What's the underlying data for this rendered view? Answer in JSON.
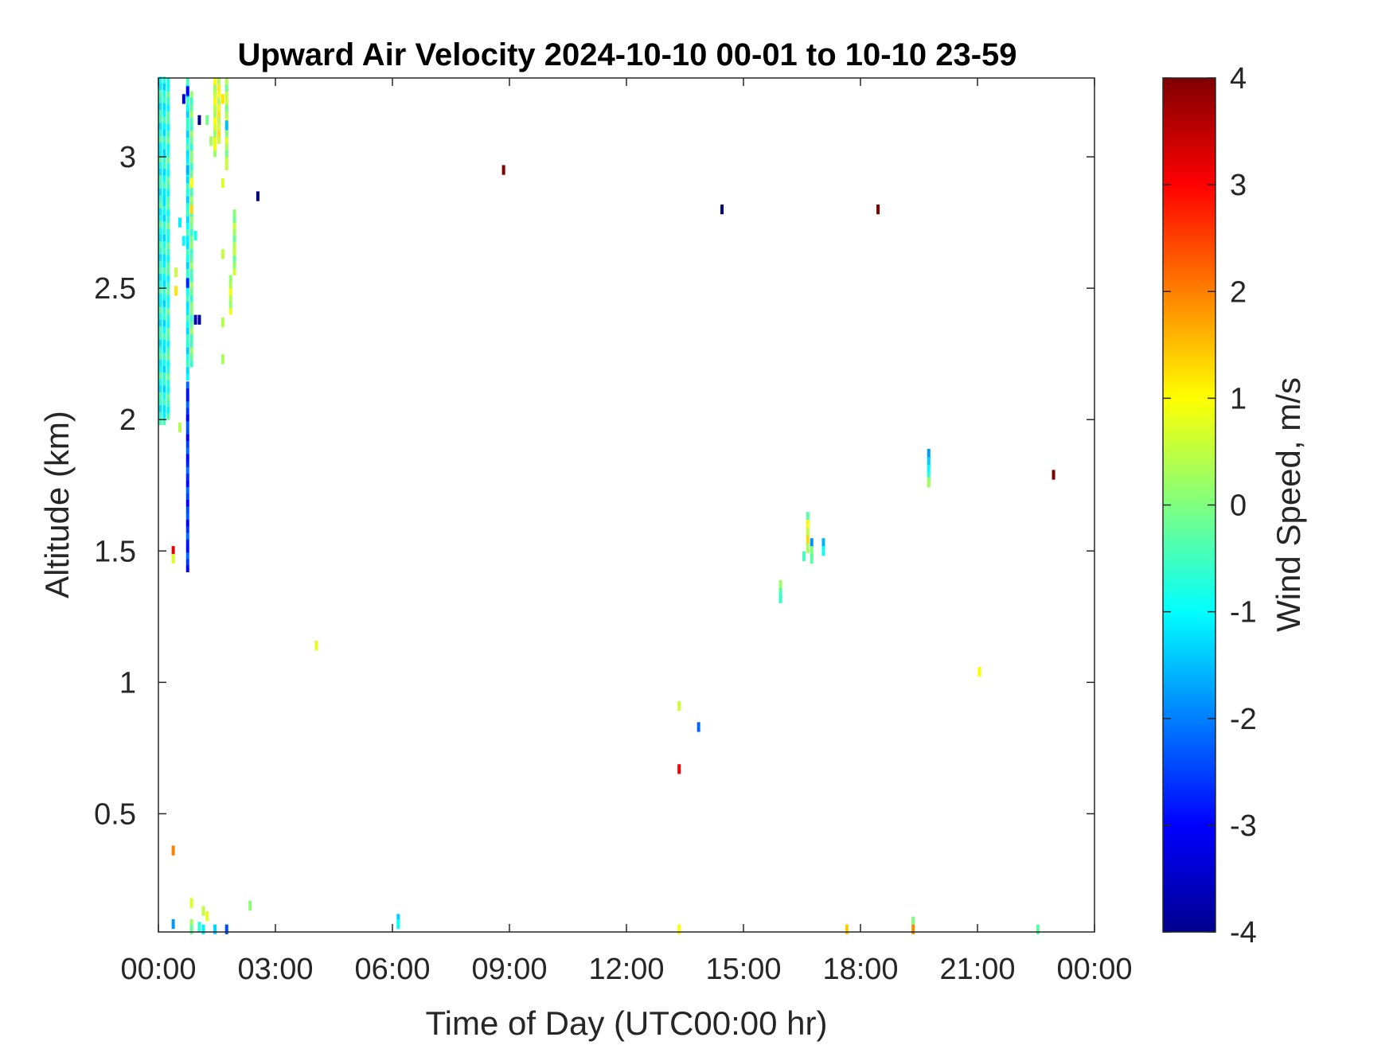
{
  "chart_data": {
    "type": "heatmap",
    "title": "Upward Air Velocity 2024-10-10 00-01 to 10-10 23-59",
    "xlabel": "Time of Day (UTC00:00 hr)",
    "ylabel": "Altitude (km)",
    "xlim": [
      0,
      24
    ],
    "ylim": [
      0.05,
      3.3
    ],
    "x_ticks": [
      0,
      3,
      6,
      9,
      12,
      15,
      18,
      21,
      24
    ],
    "x_tick_labels": [
      "00:00",
      "03:00",
      "06:00",
      "09:00",
      "12:00",
      "15:00",
      "18:00",
      "21:00",
      "00:00"
    ],
    "y_ticks": [
      0.5,
      1,
      1.5,
      2,
      2.5,
      3
    ],
    "y_tick_labels": [
      "0.5",
      "1",
      "1.5",
      "2",
      "2.5",
      "3"
    ],
    "colorbar": {
      "label": "Wind Speed, m/s",
      "colormap": "jet",
      "range": [
        -4,
        4
      ],
      "ticks": [
        -4,
        -3,
        -2,
        -1,
        0,
        1,
        2,
        3,
        4
      ],
      "tick_labels": [
        "-4",
        "-3",
        "-2",
        "-1",
        "0",
        "1",
        "2",
        "3",
        "4"
      ]
    },
    "cell_width_hours": 0.1,
    "cell_height_km": 0.025,
    "columns": [
      {
        "x": 0.05,
        "segments": [
          [
            1.98,
            3.3,
            -0.8
          ]
        ]
      },
      {
        "x": 0.15,
        "segments": [
          [
            1.98,
            3.3,
            -0.9
          ]
        ]
      },
      {
        "x": 0.25,
        "segments": [
          [
            2.0,
            3.3,
            -0.6
          ]
        ]
      },
      {
        "x": 0.75,
        "segments": [
          [
            2.15,
            3.3,
            -0.9
          ],
          [
            1.42,
            2.15,
            -2.6
          ]
        ]
      },
      {
        "x": 0.85,
        "segments": [
          [
            2.2,
            3.25,
            -0.2
          ]
        ]
      },
      {
        "x": 1.45,
        "segments": [
          [
            3.0,
            3.3,
            0.6
          ]
        ]
      },
      {
        "x": 1.55,
        "segments": [
          [
            3.05,
            3.3,
            0.8
          ]
        ]
      },
      {
        "x": 1.75,
        "segments": [
          [
            2.95,
            3.3,
            0.3
          ]
        ]
      },
      {
        "x": 1.95,
        "segments": [
          [
            2.55,
            2.8,
            0.2
          ]
        ]
      },
      {
        "x": 1.85,
        "segments": [
          [
            2.4,
            2.55,
            0.5
          ]
        ]
      }
    ],
    "points": [
      {
        "x": 0.15,
        "y": 2.83,
        "v": -1.2
      },
      {
        "x": 0.45,
        "y": 2.56,
        "v": 0.6
      },
      {
        "x": 0.45,
        "y": 2.49,
        "v": 1.2
      },
      {
        "x": 0.55,
        "y": 2.75,
        "v": -1.1
      },
      {
        "x": 0.65,
        "y": 2.68,
        "v": -1.0
      },
      {
        "x": 0.55,
        "y": 1.97,
        "v": 0.4
      },
      {
        "x": 0.75,
        "y": 2.52,
        "v": -2.7
      },
      {
        "x": 0.75,
        "y": 2.95,
        "v": -1.6
      },
      {
        "x": 0.75,
        "y": 3.25,
        "v": -3.0
      },
      {
        "x": 0.65,
        "y": 3.22,
        "v": -3.2
      },
      {
        "x": 0.85,
        "y": 2.9,
        "v": 1.0
      },
      {
        "x": 0.85,
        "y": 2.8,
        "v": 1.3
      },
      {
        "x": 0.95,
        "y": 2.7,
        "v": -0.8
      },
      {
        "x": 0.95,
        "y": 2.38,
        "v": -3.6
      },
      {
        "x": 1.05,
        "y": 2.38,
        "v": -3.8
      },
      {
        "x": 1.05,
        "y": 3.14,
        "v": -3.9
      },
      {
        "x": 1.25,
        "y": 3.14,
        "v": -0.1
      },
      {
        "x": 1.35,
        "y": 3.06,
        "v": 0.3
      },
      {
        "x": 1.65,
        "y": 3.22,
        "v": 1.2
      },
      {
        "x": 1.75,
        "y": 3.12,
        "v": -1.5
      },
      {
        "x": 1.65,
        "y": 2.9,
        "v": 0.7
      },
      {
        "x": 1.65,
        "y": 2.63,
        "v": 0.5
      },
      {
        "x": 1.65,
        "y": 2.37,
        "v": 0.4
      },
      {
        "x": 1.65,
        "y": 2.23,
        "v": 0.3
      },
      {
        "x": 2.55,
        "y": 2.85,
        "v": -4.0
      },
      {
        "x": 0.38,
        "y": 1.5,
        "v": 3.2
      },
      {
        "x": 0.38,
        "y": 1.47,
        "v": 0.7
      },
      {
        "x": 4.05,
        "y": 1.14,
        "v": 0.8
      },
      {
        "x": 8.85,
        "y": 2.95,
        "v": 4.0
      },
      {
        "x": 14.45,
        "y": 2.8,
        "v": -4.0
      },
      {
        "x": 18.45,
        "y": 2.8,
        "v": 4.0
      },
      {
        "x": 22.95,
        "y": 1.79,
        "v": 4.0
      },
      {
        "x": 13.35,
        "y": 0.91,
        "v": 0.6
      },
      {
        "x": 13.85,
        "y": 0.83,
        "v": -2.2
      },
      {
        "x": 13.35,
        "y": 0.67,
        "v": 3.0
      },
      {
        "x": 15.95,
        "y": 1.37,
        "v": 0.2
      },
      {
        "x": 15.95,
        "y": 1.34,
        "v": -0.4
      },
      {
        "x": 15.95,
        "y": 1.32,
        "v": -0.6
      },
      {
        "x": 16.55,
        "y": 1.48,
        "v": -0.5
      },
      {
        "x": 16.65,
        "y": 1.63,
        "v": -0.3
      },
      {
        "x": 16.65,
        "y": 1.6,
        "v": 1.0
      },
      {
        "x": 16.65,
        "y": 1.57,
        "v": 0.5
      },
      {
        "x": 16.65,
        "y": 1.54,
        "v": 1.3
      },
      {
        "x": 16.65,
        "y": 1.51,
        "v": 0.3
      },
      {
        "x": 16.75,
        "y": 1.53,
        "v": -1.9
      },
      {
        "x": 16.75,
        "y": 1.5,
        "v": 0.0
      },
      {
        "x": 16.75,
        "y": 1.47,
        "v": -0.3
      },
      {
        "x": 17.05,
        "y": 1.53,
        "v": -1.6
      },
      {
        "x": 17.05,
        "y": 1.5,
        "v": -0.9
      },
      {
        "x": 19.75,
        "y": 1.87,
        "v": -1.8
      },
      {
        "x": 19.75,
        "y": 1.84,
        "v": -1.4
      },
      {
        "x": 19.75,
        "y": 1.81,
        "v": -1.0
      },
      {
        "x": 19.75,
        "y": 1.78,
        "v": -0.6
      },
      {
        "x": 19.75,
        "y": 1.76,
        "v": 0.3
      },
      {
        "x": 21.05,
        "y": 1.04,
        "v": 1.0
      },
      {
        "x": 0.38,
        "y": 0.36,
        "v": 2.0
      },
      {
        "x": 0.38,
        "y": 0.08,
        "v": -1.8
      },
      {
        "x": 0.85,
        "y": 0.16,
        "v": 0.7
      },
      {
        "x": 0.85,
        "y": 0.08,
        "v": 0.3
      },
      {
        "x": 0.85,
        "y": 0.06,
        "v": -0.2
      },
      {
        "x": 1.05,
        "y": 0.07,
        "v": -0.7
      },
      {
        "x": 1.15,
        "y": 0.13,
        "v": 0.5
      },
      {
        "x": 1.25,
        "y": 0.11,
        "v": 0.8
      },
      {
        "x": 1.15,
        "y": 0.06,
        "v": -1.1
      },
      {
        "x": 1.45,
        "y": 0.06,
        "v": -1.3
      },
      {
        "x": 1.75,
        "y": 0.06,
        "v": -2.4
      },
      {
        "x": 2.35,
        "y": 0.15,
        "v": 0.1
      },
      {
        "x": 6.15,
        "y": 0.1,
        "v": -1.4
      },
      {
        "x": 6.15,
        "y": 0.08,
        "v": -0.9
      },
      {
        "x": 13.35,
        "y": 0.06,
        "v": 1.0
      },
      {
        "x": 17.65,
        "y": 0.06,
        "v": 1.4
      },
      {
        "x": 19.35,
        "y": 0.09,
        "v": 0.0
      },
      {
        "x": 19.35,
        "y": 0.06,
        "v": 1.9
      },
      {
        "x": 22.55,
        "y": 0.06,
        "v": -0.3
      }
    ]
  }
}
